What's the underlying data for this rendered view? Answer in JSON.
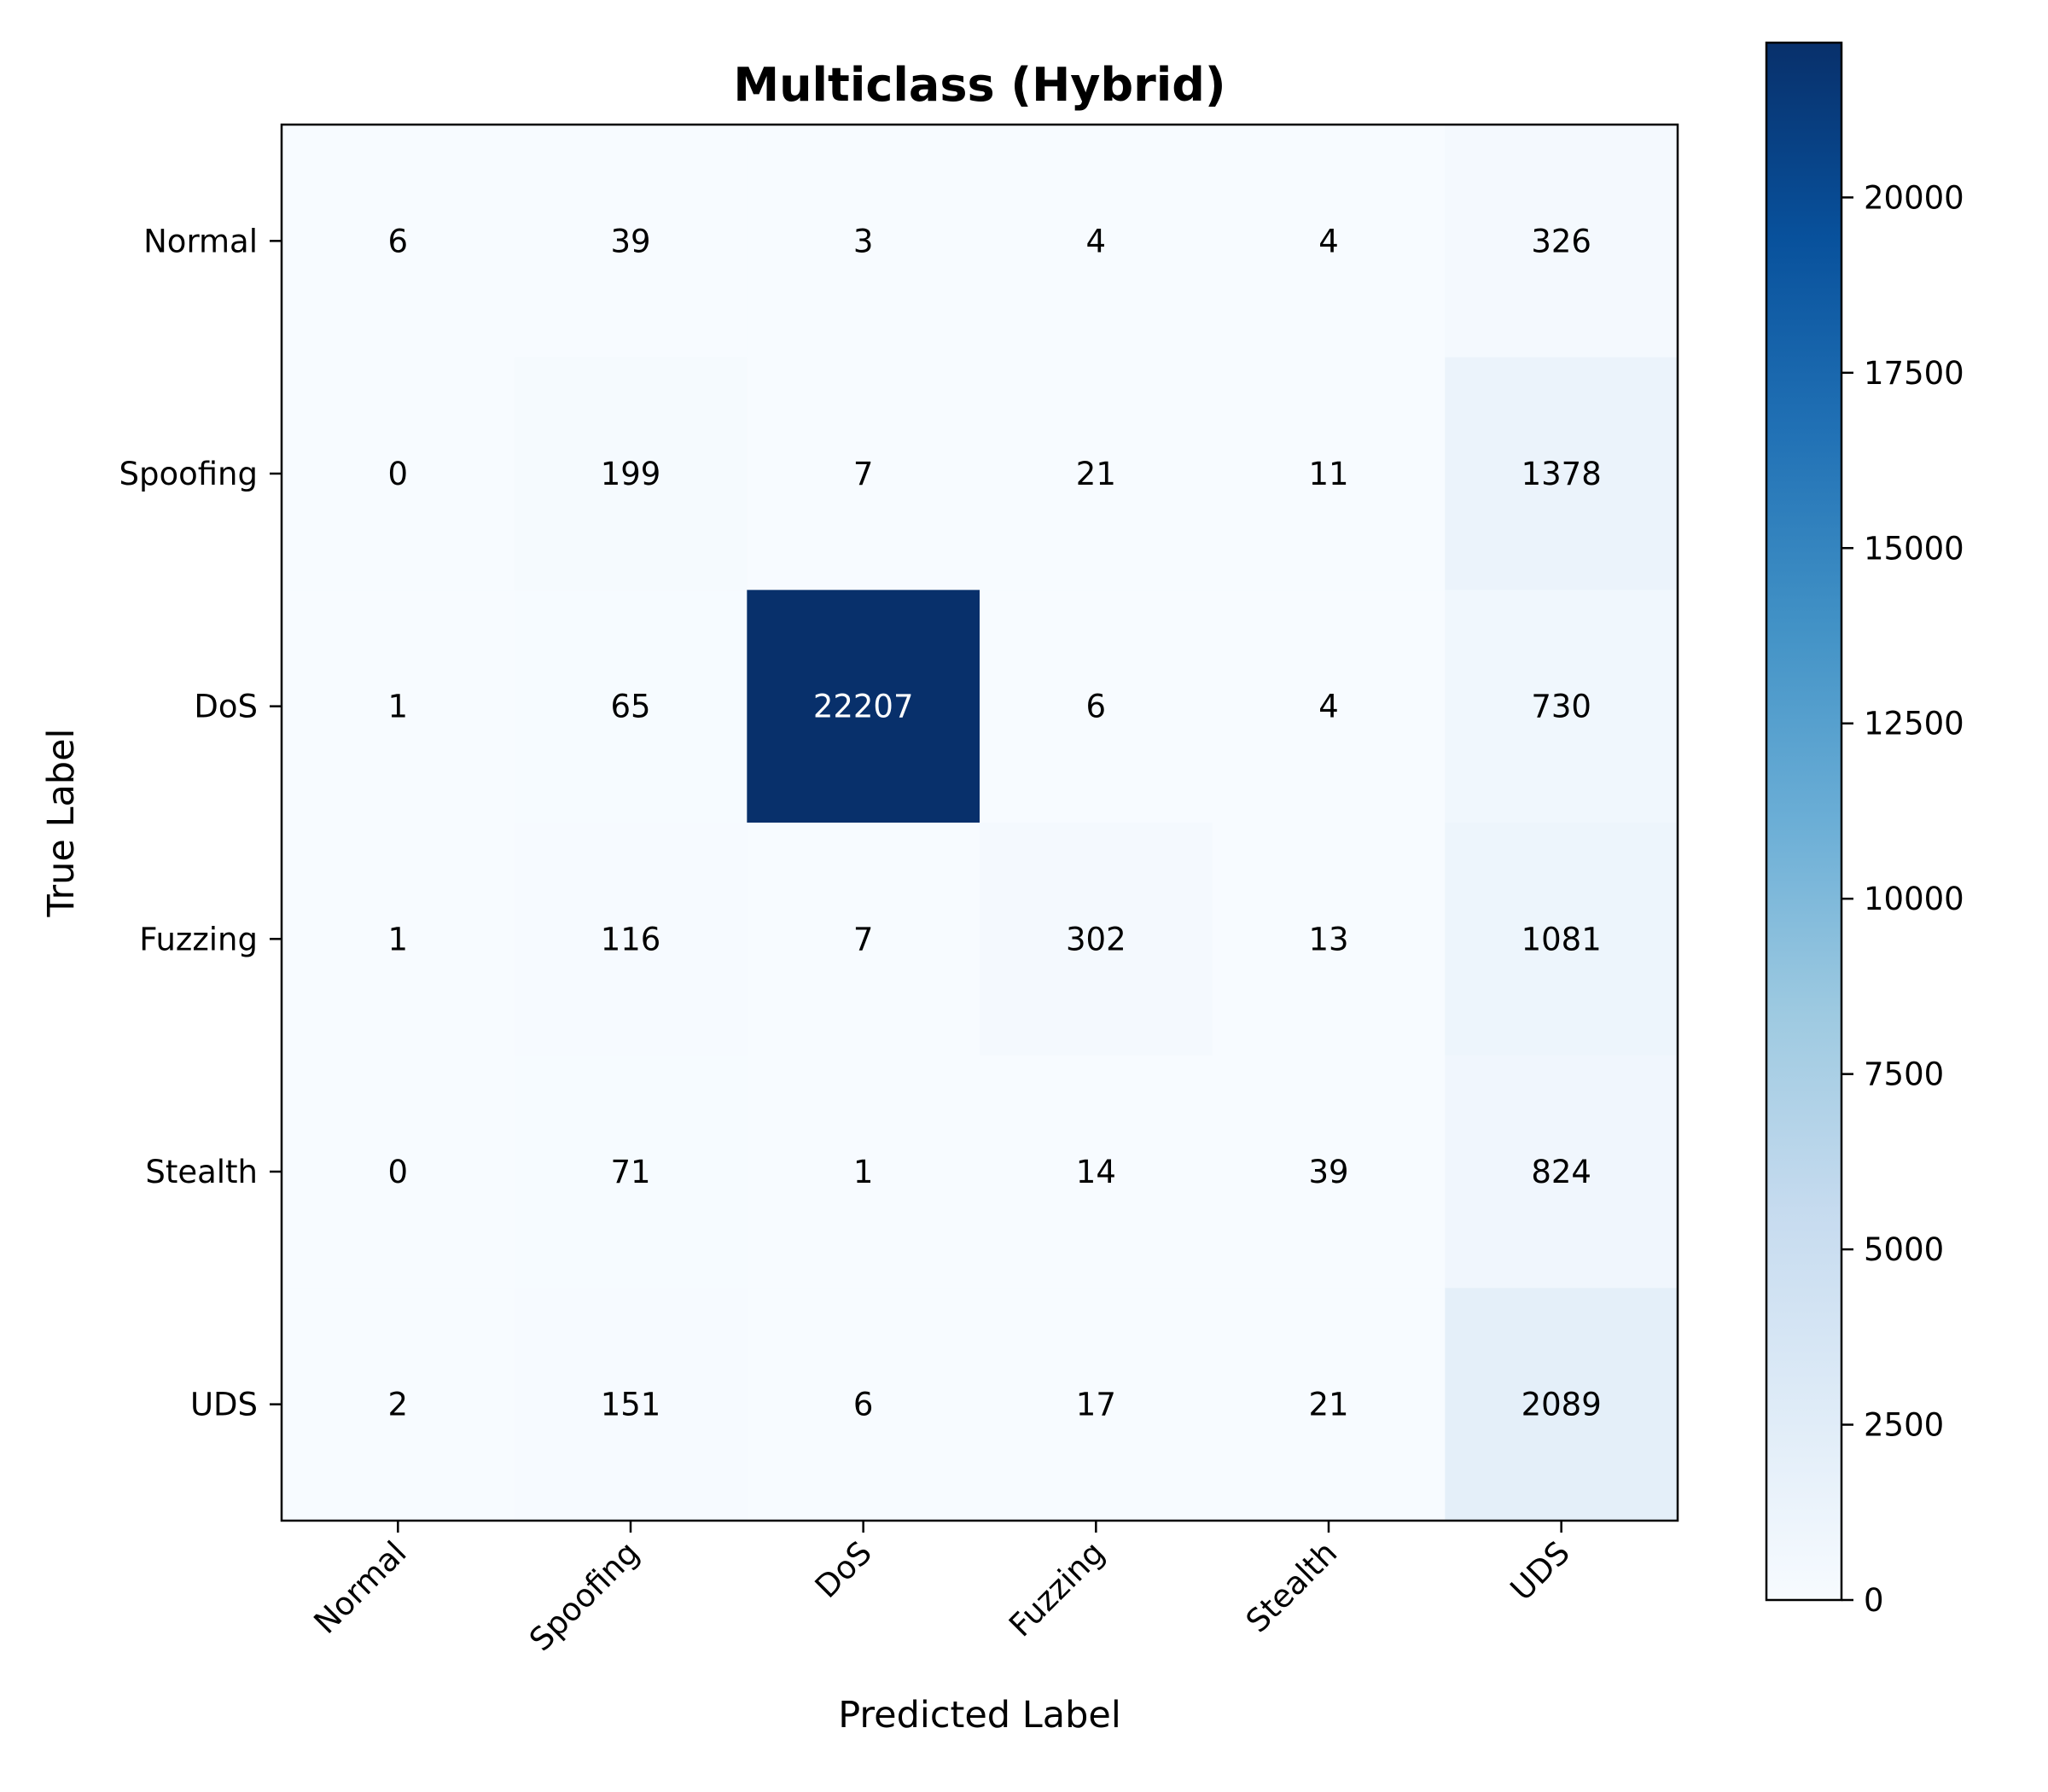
{
  "chart_data": {
    "type": "heatmap",
    "title": "Multiclass (Hybrid)",
    "xlabel": "Predicted Label",
    "ylabel": "True Label",
    "x_categories": [
      "Normal",
      "Spoofing",
      "DoS",
      "Fuzzing",
      "Stealth",
      "UDS"
    ],
    "y_categories": [
      "Normal",
      "Spoofing",
      "DoS",
      "Fuzzing",
      "Stealth",
      "UDS"
    ],
    "matrix": [
      [
        6,
        39,
        3,
        4,
        4,
        326
      ],
      [
        0,
        199,
        7,
        21,
        11,
        1378
      ],
      [
        1,
        65,
        22207,
        6,
        4,
        730
      ],
      [
        1,
        116,
        7,
        302,
        13,
        1081
      ],
      [
        0,
        71,
        1,
        14,
        39,
        824
      ],
      [
        2,
        151,
        6,
        17,
        21,
        2089
      ]
    ],
    "colorbar": {
      "colormap": "Blues",
      "range": [
        0,
        22207
      ],
      "ticks": [
        0,
        2500,
        5000,
        7500,
        10000,
        12500,
        15000,
        17500,
        20000
      ]
    },
    "grid": false
  }
}
